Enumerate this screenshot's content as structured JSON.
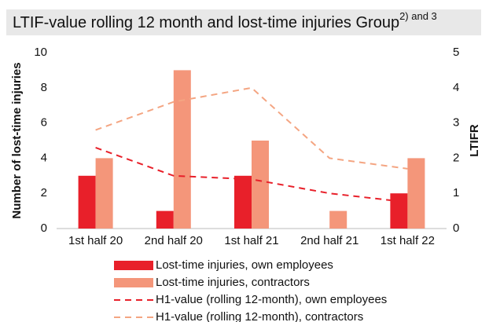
{
  "chart_data": {
    "type": "bar-line",
    "title": "LTIF-value rolling 12 month and lost-time injuries Group",
    "title_superscript": "2) and 3",
    "y_label": "Number of lost-time injuries",
    "y2_label": "LTIFR",
    "categories": [
      "1st half 20",
      "2nd half 20",
      "1st half 21",
      "2nd half 21",
      "1st half 22"
    ],
    "series": [
      {
        "name": "Lost-time injuries, own employees",
        "kind": "bar",
        "color": "#e8202a",
        "values": [
          3,
          1,
          3,
          0,
          2
        ]
      },
      {
        "name": "Lost-time injuries, contractors",
        "kind": "bar",
        "color": "#f4967a",
        "values": [
          4,
          9,
          5,
          1,
          4
        ]
      },
      {
        "name": "H1-value (rolling 12-month), own employees",
        "kind": "line",
        "axis": "y2",
        "color": "#e8202a",
        "values": [
          2.3,
          1.5,
          1.4,
          1.0,
          0.75
        ]
      },
      {
        "name": "H1-value (rolling 12-month), contractors",
        "kind": "line",
        "axis": "y2",
        "color": "#f4a582",
        "values": [
          2.8,
          3.6,
          4.0,
          2.0,
          1.7
        ]
      }
    ],
    "ylim": [
      0,
      10
    ],
    "yticks": [
      0,
      2,
      4,
      6,
      8,
      10
    ],
    "y2lim": [
      0,
      5
    ],
    "y2ticks": [
      0,
      1,
      2,
      3,
      4,
      5
    ],
    "grid": false,
    "legend": "bottom"
  }
}
